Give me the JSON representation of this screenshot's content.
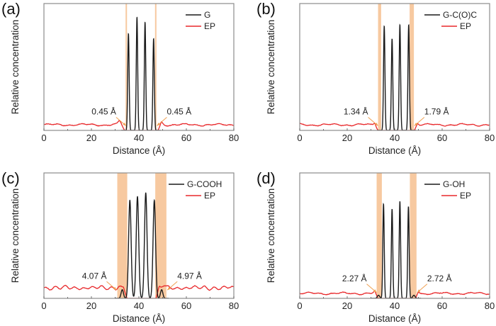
{
  "figure": {
    "panel_count": 4
  },
  "colors": {
    "g_line": "#1a1a1a",
    "ep_line": "#e8282b",
    "band_fill": "#f7c9a0",
    "arrow": "#f0a050",
    "axis": "#8c8c8c"
  },
  "chart_data": [
    {
      "type": "line",
      "panel_label": "(a)",
      "xlabel": "Distance (Å)",
      "ylabel": "Relative concentration",
      "xlim": [
        0,
        80
      ],
      "ylim": [
        0,
        1
      ],
      "xticks": [
        0,
        20,
        40,
        60,
        80
      ],
      "xtick_labels": [
        "0",
        "20",
        "40",
        "60",
        "80"
      ],
      "legend": {
        "placement": "top-right",
        "entries": [
          "G",
          "EP"
        ]
      },
      "series": [
        {
          "name": "G",
          "kind": "graphene",
          "peaks": [
            [
              35.6,
              0.77
            ],
            [
              39.2,
              0.9
            ],
            [
              42.6,
              0.86
            ],
            [
              46.2,
              0.73
            ]
          ],
          "peak_width": 0.42
        },
        {
          "name": "EP",
          "kind": "polymer",
          "baseline": 0.045,
          "left_bump": [
            31.8,
            0.075
          ],
          "right_bump": [
            49.5,
            0.065
          ],
          "gap": [
            33.8,
            48.2
          ]
        }
      ],
      "bands": [
        [
          34.4,
          35.0
        ],
        [
          46.8,
          47.4
        ]
      ],
      "annotations": [
        {
          "text": "0.45 Å",
          "side": "left",
          "x": 34.6,
          "y": 0.02
        },
        {
          "text": "0.45 Å",
          "side": "right",
          "x": 47.6,
          "y": 0.02
        }
      ]
    },
    {
      "type": "line",
      "panel_label": "(b)",
      "xlabel": "Distance (Å)",
      "ylabel": "Relative concentration",
      "xlim": [
        0,
        80
      ],
      "ylim": [
        0,
        1
      ],
      "xticks": [
        0,
        20,
        40,
        60,
        80
      ],
      "xtick_labels": [
        "0",
        "20",
        "40",
        "60",
        "80"
      ],
      "legend": {
        "placement": "top-right",
        "entries": [
          "G-C(O)C",
          "EP"
        ]
      },
      "series": [
        {
          "name": "G-C(O)C",
          "kind": "graphene",
          "peaks": [
            [
              35.6,
              0.83
            ],
            [
              38.9,
              0.73
            ],
            [
              42.2,
              0.84
            ],
            [
              45.9,
              0.84
            ]
          ],
          "peak_width": 0.42
        },
        {
          "name": "EP",
          "kind": "polymer",
          "baseline": 0.045,
          "left_bump": [
            31.7,
            0.065
          ],
          "right_bump": [
            49.2,
            0.06
          ],
          "gap": [
            32.8,
            48.5
          ]
        }
      ],
      "bands": [
        [
          33.0,
          34.3
        ],
        [
          46.3,
          48.1
        ]
      ],
      "annotations": [
        {
          "text": "1.34 Å",
          "side": "left",
          "x": 33.0,
          "y": 0.02
        },
        {
          "text": "1.79 Å",
          "side": "right",
          "x": 48.3,
          "y": 0.02
        }
      ]
    },
    {
      "type": "line",
      "panel_label": "(c)",
      "xlabel": "Distance (Å)",
      "ylabel": "Relative concentration",
      "xlim": [
        0,
        80
      ],
      "ylim": [
        0,
        1
      ],
      "xticks": [
        0,
        20,
        40,
        60,
        80
      ],
      "xtick_labels": [
        "0",
        "20",
        "40",
        "60",
        "80"
      ],
      "legend": {
        "placement": "top-right",
        "entries": [
          "G-COOH",
          "EP"
        ]
      },
      "series": [
        {
          "name": "G-COOH",
          "kind": "graphene",
          "peaks": [
            [
              33.0,
              0.07
            ],
            [
              36.2,
              0.79
            ],
            [
              39.4,
              0.82
            ],
            [
              42.9,
              0.85
            ],
            [
              46.5,
              0.79
            ],
            [
              49.6,
              0.07
            ]
          ],
          "peak_width": 0.75
        },
        {
          "name": "EP",
          "kind": "polymer",
          "baseline": 0.085,
          "left_bump": [
            31.5,
            0.1
          ],
          "right_bump": [
            50.4,
            0.105
          ],
          "gap": [
            34.8,
            47.4
          ]
        }
      ],
      "bands": [
        [
          30.9,
          35.1
        ],
        [
          46.9,
          51.6
        ]
      ],
      "annotations": [
        {
          "text": "4.07 Å",
          "side": "left",
          "x": 30.6,
          "y": 0.05
        },
        {
          "text": "4.97 Å",
          "side": "right",
          "x": 52.0,
          "y": 0.05
        }
      ]
    },
    {
      "type": "line",
      "panel_label": "(d)",
      "xlabel": "Distance (Å)",
      "ylabel": "Relative concentration",
      "xlim": [
        0,
        80
      ],
      "ylim": [
        0,
        1
      ],
      "xticks": [
        0,
        20,
        40,
        60,
        80
      ],
      "xtick_labels": [
        "0",
        "20",
        "40",
        "60",
        "80"
      ],
      "legend": {
        "placement": "top-right",
        "entries": [
          "G-OH",
          "EP"
        ]
      },
      "series": [
        {
          "name": "G-OH",
          "kind": "graphene",
          "peaks": [
            [
              33.2,
              0.025
            ],
            [
              35.3,
              0.76
            ],
            [
              38.9,
              0.72
            ],
            [
              42.2,
              0.78
            ],
            [
              45.8,
              0.74
            ],
            [
              48.1,
              0.025
            ]
          ],
          "peak_width": 0.42
        },
        {
          "name": "EP",
          "kind": "polymer",
          "baseline": 0.04,
          "left_bump": [
            31.9,
            0.06
          ],
          "right_bump": [
            49.7,
            0.06
          ],
          "gap": [
            32.7,
            48.9
          ]
        }
      ],
      "bands": [
        [
          32.4,
          34.6
        ],
        [
          46.4,
          49.2
        ]
      ],
      "annotations": [
        {
          "text": "2.27 Å",
          "side": "left",
          "x": 32.4,
          "y": 0.03
        },
        {
          "text": "2.72 Å",
          "side": "right",
          "x": 49.5,
          "y": 0.03
        }
      ]
    }
  ]
}
